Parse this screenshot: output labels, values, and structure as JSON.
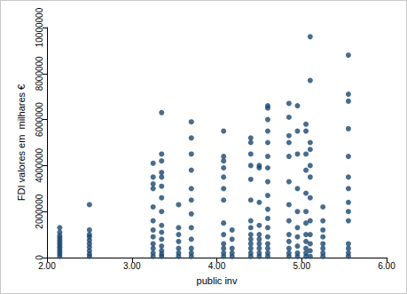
{
  "chart_data": {
    "type": "scatter",
    "x_label": "public inv",
    "y_label": "FDI valores em  milhares €",
    "color": "#1a476f",
    "marker": "circle",
    "grid": false,
    "xlim": [
      2,
      6
    ],
    "xticks": [
      {
        "value": 2,
        "label": "2.00"
      },
      {
        "value": 3,
        "label": "3.00"
      },
      {
        "value": 4,
        "label": "4.00"
      },
      {
        "value": 5,
        "label": "5.00"
      },
      {
        "value": 6,
        "label": "6.00"
      }
    ],
    "ylim": [
      0,
      10000000
    ],
    "yticks": [
      0,
      2000000,
      4000000,
      6000000,
      8000000,
      10000000
    ],
    "x": [
      2.15,
      2.15,
      2.15,
      2.15,
      2.15,
      2.15,
      2.15,
      2.15,
      2.15,
      2.15,
      2.15,
      2.15,
      2.5,
      2.5,
      2.5,
      2.5,
      2.5,
      2.5,
      2.5,
      2.5,
      2.5,
      2.5,
      3.25,
      3.25,
      3.25,
      3.25,
      3.25,
      3.25,
      3.25,
      3.25,
      3.25,
      3.25,
      3.25,
      3.25,
      3.35,
      3.35,
      3.35,
      3.35,
      3.35,
      3.35,
      3.35,
      3.35,
      3.35,
      3.35,
      3.35,
      3.35,
      3.35,
      3.35,
      3.35,
      3.55,
      3.55,
      3.55,
      3.55,
      3.55,
      3.55,
      3.55,
      3.7,
      3.7,
      3.7,
      3.7,
      3.7,
      3.7,
      3.7,
      3.7,
      3.7,
      3.7,
      3.7,
      3.7,
      4.08,
      4.08,
      4.08,
      4.08,
      4.08,
      4.08,
      4.08,
      4.08,
      4.08,
      4.08,
      4.08,
      4.08,
      4.08,
      4.18,
      4.18,
      4.18,
      4.18,
      4.18,
      4.4,
      4.4,
      4.4,
      4.4,
      4.4,
      4.4,
      4.4,
      4.4,
      4.4,
      4.4,
      4.4,
      4.4,
      4.4,
      4.4,
      4.5,
      4.5,
      4.5,
      4.5,
      4.5,
      4.5,
      4.5,
      4.5,
      4.5,
      4.5,
      4.6,
      4.6,
      4.6,
      4.6,
      4.6,
      4.6,
      4.6,
      4.6,
      4.6,
      4.6,
      4.6,
      4.6,
      4.6,
      4.6,
      4.6,
      4.6,
      4.6,
      4.85,
      4.85,
      4.85,
      4.85,
      4.85,
      4.85,
      4.85,
      4.85,
      4.85,
      4.85,
      4.85,
      4.85,
      4.85,
      4.95,
      4.95,
      4.95,
      4.95,
      4.95,
      4.95,
      4.95,
      4.95,
      4.95,
      4.95,
      5.05,
      5.05,
      5.05,
      5.05,
      5.05,
      5.05,
      5.05,
      5.05,
      5.05,
      5.05,
      5.05,
      5.05,
      5.1,
      5.1,
      5.1,
      5.1,
      5.1,
      5.1,
      5.1,
      5.1,
      5.1,
      5.1,
      5.1,
      5.1,
      5.25,
      5.25,
      5.25,
      5.25,
      5.25,
      5.25,
      5.25,
      5.25,
      5.55,
      5.55,
      5.55,
      5.55,
      5.55,
      5.55,
      5.55,
      5.55,
      5.55,
      5.55,
      5.55,
      5.55,
      5.55,
      5.55
    ],
    "values": [
      50000,
      150000,
      250000,
      350000,
      450000,
      550000,
      650000,
      750000,
      850000,
      950000,
      1100000,
      1300000,
      50000,
      150000,
      300000,
      450000,
      600000,
      750000,
      900000,
      1000000,
      1200000,
      2300000,
      50000,
      200000,
      400000,
      600000,
      900000,
      1200000,
      1600000,
      2200000,
      3000000,
      3200000,
      3500000,
      4100000,
      50000,
      150000,
      300000,
      500000,
      800000,
      1100000,
      1400000,
      2000000,
      2600000,
      3100000,
      3500000,
      3700000,
      4200000,
      4500000,
      6300000,
      50000,
      200000,
      400000,
      700000,
      1000000,
      1300000,
      2300000,
      50000,
      200000,
      400000,
      800000,
      1300000,
      1900000,
      2500000,
      3000000,
      3800000,
      4500000,
      5200000,
      5900000,
      50000,
      200000,
      400000,
      600000,
      1000000,
      1500000,
      2500000,
      3000000,
      3500000,
      3900000,
      4200000,
      4400000,
      5500000,
      50000,
      200000,
      400000,
      800000,
      1200000,
      50000,
      200000,
      400000,
      600000,
      800000,
      1000000,
      1300000,
      1600000,
      2500000,
      3400000,
      4000000,
      4500000,
      5000000,
      5200000,
      50000,
      200000,
      400000,
      600000,
      800000,
      1000000,
      1400000,
      2400000,
      3900000,
      4000000,
      50000,
      200000,
      400000,
      600000,
      900000,
      1300000,
      1700000,
      2100000,
      2700000,
      3300000,
      3900000,
      4400000,
      5000000,
      5500000,
      6000000,
      6500000,
      6600000,
      50000,
      200000,
      400000,
      700000,
      1000000,
      1600000,
      2300000,
      3300000,
      4400000,
      5000000,
      5300000,
      6100000,
      6700000,
      50000,
      200000,
      500000,
      900000,
      1300000,
      2000000,
      3000000,
      4500000,
      5500000,
      6600000,
      50000,
      200000,
      400000,
      700000,
      1000000,
      1500000,
      2000000,
      2800000,
      3800000,
      4500000,
      5500000,
      5800000,
      50000,
      300000,
      600000,
      1000000,
      1600000,
      2600000,
      3500000,
      4000000,
      4700000,
      5000000,
      7700000,
      9600000,
      50000,
      200000,
      400000,
      600000,
      900000,
      1200000,
      1600000,
      2200000,
      50000,
      200000,
      400000,
      600000,
      1600000,
      2000000,
      2400000,
      3000000,
      3500000,
      4400000,
      5600000,
      6800000,
      7100000,
      8800000
    ]
  }
}
